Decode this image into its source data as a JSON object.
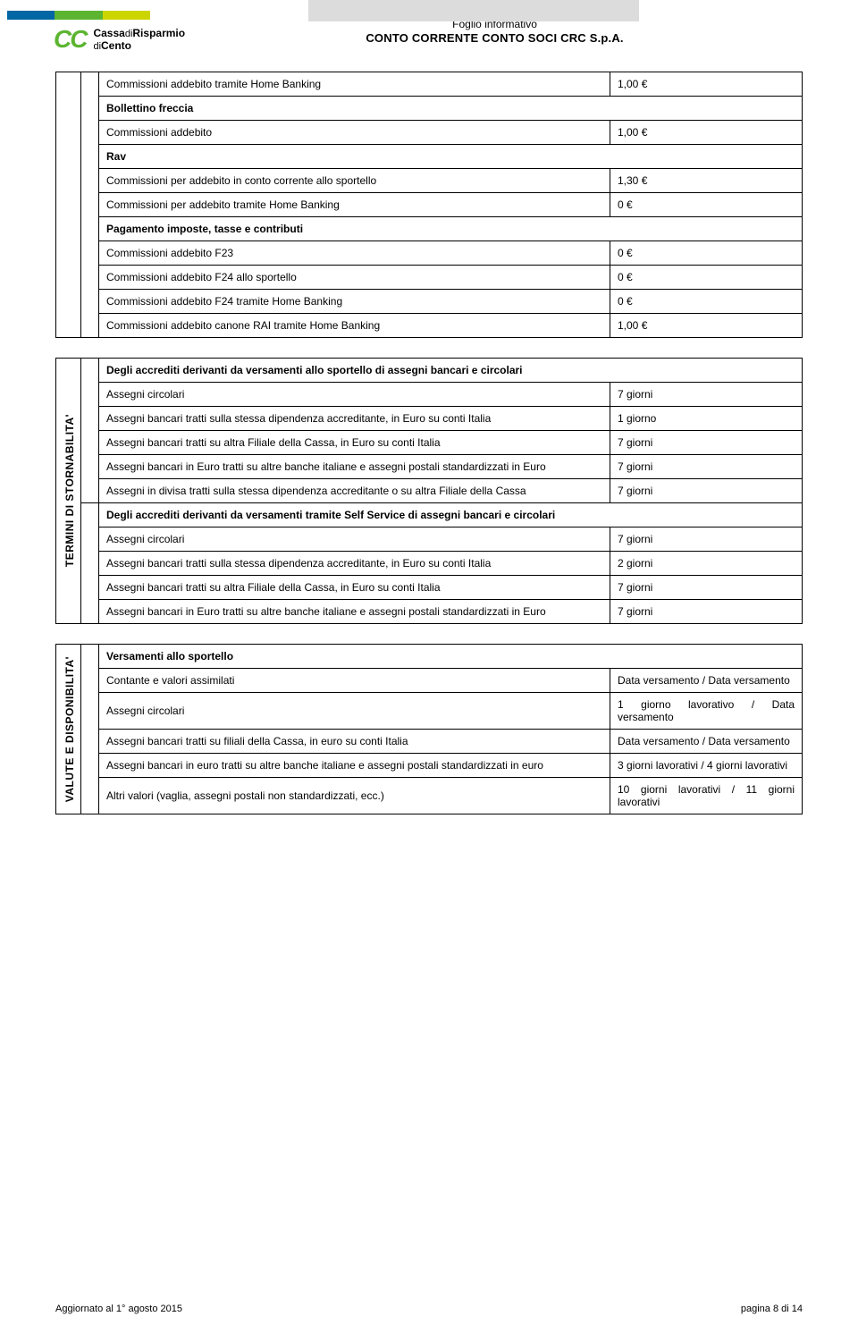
{
  "header": {
    "line1": "Foglio informativo",
    "line2": "CONTO CORRENTE CONTO SOCI CRC S.p.A.",
    "logo_main": "Cassa",
    "logo_thin1": "di",
    "logo_main2": "Risparmio",
    "logo_thin2": "di",
    "logo_main3": "Cento"
  },
  "table1": {
    "r1": {
      "label": "Commissioni addebito tramite Home Banking",
      "val": "1,00 €"
    },
    "h1": "Bollettino freccia",
    "r2": {
      "label": "Commissioni addebito",
      "val": "1,00 €"
    },
    "h2": "Rav",
    "r3": {
      "label": "Commissioni per addebito in conto corrente allo sportello",
      "val": "1,30 €"
    },
    "r4": {
      "label": "Commissioni per addebito tramite Home Banking",
      "val": "0 €"
    },
    "h3": "Pagamento imposte, tasse e contributi",
    "r5": {
      "label": "Commissioni addebito F23",
      "val": "0 €"
    },
    "r6": {
      "label": "Commissioni addebito F24 allo sportello",
      "val": "0 €"
    },
    "r7": {
      "label": "Commissioni addebito F24 tramite Home Banking",
      "val": "0 €"
    },
    "r8": {
      "label": "Commissioni addebito canone RAI tramite Home Banking",
      "val": "1,00 €"
    }
  },
  "table2": {
    "sidelabel": "TERMINI DI STORNABILITA'",
    "h1": "Degli accrediti derivanti da versamenti allo sportello di assegni bancari e circolari",
    "r1": {
      "label": "Assegni circolari",
      "val": "7 giorni"
    },
    "r2": {
      "label": "Assegni bancari tratti sulla stessa dipendenza accreditante, in Euro su conti Italia",
      "val": "1 giorno"
    },
    "r3": {
      "label": "Assegni bancari tratti su altra Filiale della Cassa, in Euro su conti Italia",
      "val": "7 giorni"
    },
    "r4": {
      "label": "Assegni bancari in Euro tratti su altre banche italiane e assegni postali standardizzati in Euro",
      "val": "7 giorni"
    },
    "r5": {
      "label": "Assegni in divisa tratti sulla stessa dipendenza accreditante o su altra Filiale della Cassa",
      "val": "7 giorni"
    },
    "h2": "Degli accrediti derivanti da versamenti tramite Self Service di assegni bancari e circolari",
    "r6": {
      "label": "Assegni circolari",
      "val": "7 giorni"
    },
    "r7": {
      "label": "Assegni bancari tratti sulla stessa dipendenza accreditante, in Euro su conti Italia",
      "val": "2 giorni"
    },
    "r8": {
      "label": "Assegni bancari tratti su altra Filiale della Cassa, in Euro su conti Italia",
      "val": "7 giorni"
    },
    "r9": {
      "label": "Assegni bancari in Euro tratti su altre banche italiane e assegni postali standardizzati in Euro",
      "val": "7 giorni"
    }
  },
  "table3": {
    "sidelabel": "VALUTE E DISPONIBILITA'",
    "h1": "Versamenti allo sportello",
    "r1": {
      "label": "Contante e valori assimilati",
      "val": "Data versamento / Data versamento"
    },
    "r2": {
      "label": "Assegni circolari",
      "val": "1 giorno lavorativo / Data versamento"
    },
    "r3": {
      "label": "Assegni bancari tratti su filiali della Cassa, in euro su conti Italia",
      "val": "Data versamento / Data versamento"
    },
    "r4": {
      "label": "Assegni bancari in euro tratti su altre banche italiane e assegni postali standardizzati in euro",
      "val": "3 giorni lavorativi / 4 giorni lavorativi"
    },
    "r5": {
      "label": "Altri valori (vaglia, assegni postali non standardizzati, ecc.)",
      "val": "10 giorni lavorativi / 11 giorni lavorativi"
    }
  },
  "footer": {
    "left": "Aggiornato al 1° agosto 2015",
    "right": "pagina 8 di 14"
  }
}
